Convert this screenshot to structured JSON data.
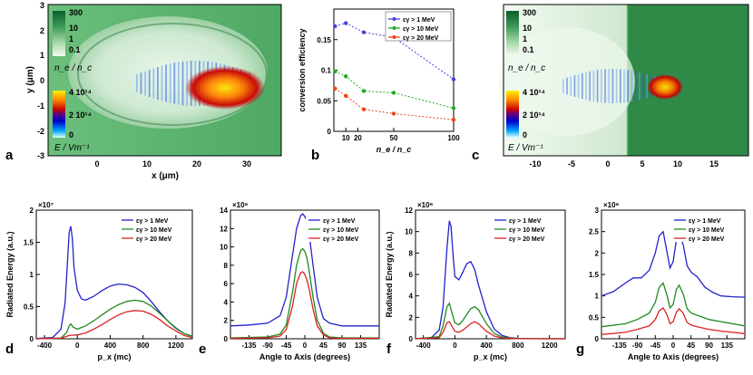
{
  "panels": {
    "a": {
      "letter": "a",
      "xlabel": "x (μm)",
      "ylabel": "y (μm)",
      "xticks": [
        "0",
        "10",
        "20",
        "30"
      ],
      "yticks": [
        "3",
        "2",
        "1",
        "0",
        "-1",
        "-2",
        "-3"
      ],
      "cbar_density_ticks": [
        "300",
        "10",
        "1",
        "0.1"
      ],
      "cbar_density_label": "n_e / n_c",
      "cbar_field_ticks": [
        "4 10¹⁴",
        "2 10¹⁴",
        "0"
      ],
      "cbar_field_label": "E / Vm⁻¹"
    },
    "c": {
      "letter": "c",
      "xticks": [
        "-10",
        "-5",
        "0",
        "5",
        "10",
        "15"
      ],
      "yticks": [],
      "cbar_density_ticks": [
        "300",
        "10",
        "1",
        "0.1"
      ],
      "cbar_density_label": "n_e / n_c",
      "cbar_field_ticks": [
        "4 10¹⁴",
        "2 10¹⁴",
        "0"
      ],
      "cbar_field_label": "E / Vm⁻¹"
    },
    "b": {
      "letter": "b"
    },
    "d": {
      "letter": "d"
    },
    "e": {
      "letter": "e"
    },
    "f": {
      "letter": "f"
    },
    "g": {
      "letter": "g"
    }
  },
  "legend_labels": [
    "εγ > 1 MeV",
    "εγ > 10 MeV",
    "εγ > 20 MeV"
  ],
  "colors": {
    "blue": "#2222cc",
    "green": "#228822",
    "red": "#dd2222"
  },
  "chart_data": [
    {
      "id": "b",
      "type": "line",
      "xlabel": "n_e / n_c",
      "ylabel": "conversion efficiency",
      "categories": [
        "10",
        "20",
        "50",
        "100"
      ],
      "xlim": [
        0,
        100
      ],
      "ylim": [
        0,
        0.2
      ],
      "yticks": [
        "0",
        "0.05",
        "0.1",
        "0.15"
      ],
      "legend_position": "top-right",
      "series": [
        {
          "name": "εγ > 1 MeV",
          "color": "#4444dd",
          "x": [
            1,
            10,
            25,
            50,
            100
          ],
          "values": [
            0.172,
            0.177,
            0.162,
            0.154,
            0.085
          ]
        },
        {
          "name": "εγ > 10 MeV",
          "color": "#22aa22",
          "x": [
            1,
            10,
            25,
            50,
            100
          ],
          "values": [
            0.098,
            0.09,
            0.066,
            0.063,
            0.038
          ]
        },
        {
          "name": "εγ > 20 MeV",
          "color": "#ee4411",
          "x": [
            1,
            10,
            25,
            50,
            100
          ],
          "values": [
            0.07,
            0.058,
            0.036,
            0.029,
            0.019
          ]
        }
      ]
    },
    {
      "id": "d",
      "type": "line",
      "xlabel": "p_x (mc)",
      "ylabel": "Radiated Energy (a.u.)",
      "multiplier": "×10⁷",
      "xlim": [
        -500,
        1400
      ],
      "ylim": [
        0,
        2
      ],
      "xticks": [
        "-400",
        "0",
        "400",
        "800",
        "1200"
      ],
      "yticks": [
        "0",
        "0.5",
        "1",
        "1.5",
        "2"
      ],
      "legend_position": "top-right",
      "series": [
        {
          "name": "εγ > 1 MeV",
          "color": "#2222cc",
          "x": [
            -500,
            -300,
            -200,
            -150,
            -120,
            -100,
            -80,
            -60,
            -40,
            0,
            50,
            100,
            200,
            300,
            400,
            500,
            600,
            700,
            800,
            900,
            1000,
            1100,
            1200,
            1300,
            1400
          ],
          "values": [
            0.005,
            0.02,
            0.15,
            0.55,
            1.2,
            1.65,
            1.75,
            1.55,
            1.1,
            0.75,
            0.62,
            0.6,
            0.66,
            0.75,
            0.82,
            0.85,
            0.84,
            0.8,
            0.72,
            0.58,
            0.42,
            0.28,
            0.16,
            0.08,
            0.04
          ]
        },
        {
          "name": "εγ > 10 MeV",
          "color": "#228822",
          "x": [
            -500,
            -200,
            -130,
            -100,
            -80,
            -50,
            0,
            100,
            200,
            300,
            400,
            500,
            600,
            700,
            800,
            900,
            1000,
            1100,
            1200,
            1300,
            1400
          ],
          "values": [
            0,
            0.01,
            0.1,
            0.2,
            0.23,
            0.18,
            0.15,
            0.2,
            0.28,
            0.37,
            0.46,
            0.53,
            0.58,
            0.6,
            0.58,
            0.51,
            0.4,
            0.28,
            0.17,
            0.08,
            0.04
          ]
        },
        {
          "name": "εγ > 20 MeV",
          "color": "#dd2222",
          "x": [
            -500,
            -200,
            -100,
            0,
            100,
            200,
            300,
            400,
            500,
            600,
            700,
            800,
            900,
            1000,
            1100,
            1200,
            1300,
            1400
          ],
          "values": [
            0,
            0.01,
            0.05,
            0.06,
            0.09,
            0.15,
            0.22,
            0.3,
            0.37,
            0.42,
            0.44,
            0.43,
            0.38,
            0.3,
            0.2,
            0.12,
            0.05,
            0.02
          ]
        }
      ]
    },
    {
      "id": "e",
      "type": "line",
      "xlabel": "Angle to Axis (degrees)",
      "multiplier": "×10⁶",
      "xlim": [
        -180,
        180
      ],
      "ylim": [
        0,
        14
      ],
      "xticks": [
        "-135",
        "-90",
        "-45",
        "0",
        "45",
        "90",
        "135"
      ],
      "yticks": [
        "0",
        "2",
        "4",
        "6",
        "8",
        "10",
        "12",
        "14"
      ],
      "legend_position": "top-right",
      "series": [
        {
          "name": "εγ > 1 MeV",
          "color": "#2222cc",
          "x": [
            -180,
            -135,
            -90,
            -60,
            -45,
            -30,
            -20,
            -10,
            -5,
            0,
            5,
            10,
            20,
            30,
            45,
            60,
            90,
            135,
            180
          ],
          "values": [
            1.4,
            1.5,
            1.7,
            2.5,
            4.5,
            9.0,
            12.0,
            13.4,
            13.6,
            13.3,
            12.8,
            11.5,
            8.0,
            4.5,
            2.2,
            1.7,
            1.4,
            1.4,
            1.4
          ]
        },
        {
          "name": "εγ > 10 MeV",
          "color": "#228822",
          "x": [
            -180,
            -90,
            -60,
            -45,
            -30,
            -20,
            -10,
            -5,
            0,
            5,
            10,
            20,
            30,
            45,
            60,
            90,
            180
          ],
          "values": [
            0.1,
            0.2,
            0.5,
            1.5,
            5.0,
            8.0,
            9.6,
            9.8,
            9.5,
            8.8,
            7.5,
            4.5,
            2.0,
            0.6,
            0.2,
            0.1,
            0.1
          ]
        },
        {
          "name": "εγ > 20 MeV",
          "color": "#dd2222",
          "x": [
            -180,
            -90,
            -60,
            -45,
            -30,
            -20,
            -10,
            -5,
            0,
            5,
            10,
            20,
            30,
            45,
            60,
            90,
            180
          ],
          "values": [
            0.05,
            0.1,
            0.3,
            1.0,
            3.5,
            6.0,
            7.2,
            7.3,
            7.0,
            6.4,
            5.5,
            3.2,
            1.4,
            0.4,
            0.1,
            0.05,
            0.05
          ]
        }
      ]
    },
    {
      "id": "f",
      "type": "line",
      "xlabel": "p_x (mc)",
      "ylabel": "Radiated Energy (a.u.)",
      "multiplier": "×10⁶",
      "xlim": [
        -500,
        1400
      ],
      "ylim": [
        0,
        12
      ],
      "xticks": [
        "-400",
        "0",
        "400",
        "800",
        "1200"
      ],
      "yticks": [
        "0",
        "2",
        "4",
        "6",
        "8",
        "10",
        "12"
      ],
      "legend_position": "top-right",
      "series": [
        {
          "name": "εγ > 1 MeV",
          "color": "#2222cc",
          "x": [
            -500,
            -300,
            -200,
            -150,
            -100,
            -70,
            -50,
            -20,
            0,
            50,
            100,
            150,
            200,
            250,
            300,
            400,
            500,
            600,
            700,
            800,
            1000,
            1400
          ],
          "values": [
            0.02,
            0.1,
            0.8,
            3.0,
            8.5,
            11.0,
            10.5,
            7.5,
            5.8,
            5.5,
            6.2,
            7.0,
            7.2,
            6.5,
            5.0,
            2.5,
            0.9,
            0.3,
            0.1,
            0.04,
            0.01,
            0
          ]
        },
        {
          "name": "εγ > 10 MeV",
          "color": "#228822",
          "x": [
            -500,
            -200,
            -150,
            -100,
            -70,
            -40,
            0,
            50,
            100,
            200,
            250,
            300,
            400,
            500,
            600,
            800,
            1400
          ],
          "values": [
            0,
            0.2,
            1.2,
            3.0,
            3.3,
            2.5,
            1.5,
            1.3,
            1.7,
            2.8,
            3.0,
            2.7,
            1.4,
            0.5,
            0.15,
            0.02,
            0
          ]
        },
        {
          "name": "εγ > 20 MeV",
          "color": "#dd2222",
          "x": [
            -500,
            -200,
            -150,
            -100,
            -70,
            -40,
            0,
            50,
            100,
            200,
            250,
            300,
            400,
            500,
            600,
            800,
            1400
          ],
          "values": [
            0,
            0.1,
            0.6,
            1.5,
            1.6,
            1.2,
            0.7,
            0.6,
            0.8,
            1.4,
            1.6,
            1.4,
            0.7,
            0.25,
            0.08,
            0.01,
            0
          ]
        }
      ]
    },
    {
      "id": "g",
      "type": "line",
      "xlabel": "Angle to Axis (degrees)",
      "multiplier": "×10⁶",
      "xlim": [
        -180,
        180
      ],
      "ylim": [
        0,
        3
      ],
      "xticks": [
        "-135",
        "-90",
        "-45",
        "0",
        "45",
        "90",
        "135"
      ],
      "yticks": [
        "0",
        "0.5",
        "1",
        "1.5",
        "2",
        "2.5",
        "3"
      ],
      "legend_position": "top-right",
      "series": [
        {
          "name": "εγ > 1 MeV",
          "color": "#2222cc",
          "x": [
            -180,
            -150,
            -120,
            -100,
            -80,
            -60,
            -45,
            -35,
            -25,
            -15,
            -8,
            0,
            8,
            15,
            25,
            35,
            45,
            60,
            80,
            100,
            120,
            150,
            180
          ],
          "values": [
            1.0,
            1.1,
            1.3,
            1.42,
            1.42,
            1.6,
            2.0,
            2.4,
            2.5,
            2.0,
            1.65,
            1.8,
            2.3,
            2.45,
            2.2,
            1.7,
            1.55,
            1.45,
            1.2,
            1.08,
            1.0,
            0.98,
            0.97
          ]
        },
        {
          "name": "εγ > 10 MeV",
          "color": "#228822",
          "x": [
            -180,
            -120,
            -90,
            -60,
            -45,
            -35,
            -25,
            -15,
            -8,
            0,
            8,
            15,
            25,
            35,
            45,
            60,
            90,
            120,
            180
          ],
          "values": [
            0.28,
            0.35,
            0.45,
            0.6,
            0.85,
            1.2,
            1.3,
            1.0,
            0.72,
            0.8,
            1.15,
            1.25,
            1.05,
            0.7,
            0.6,
            0.55,
            0.45,
            0.4,
            0.3
          ]
        },
        {
          "name": "εγ > 20 MeV",
          "color": "#dd2222",
          "x": [
            -180,
            -120,
            -90,
            -60,
            -45,
            -35,
            -25,
            -15,
            -8,
            0,
            8,
            15,
            25,
            35,
            45,
            60,
            90,
            120,
            180
          ],
          "values": [
            0.1,
            0.15,
            0.22,
            0.3,
            0.45,
            0.65,
            0.72,
            0.55,
            0.35,
            0.4,
            0.62,
            0.7,
            0.6,
            0.38,
            0.32,
            0.28,
            0.22,
            0.18,
            0.12
          ]
        }
      ]
    }
  ]
}
